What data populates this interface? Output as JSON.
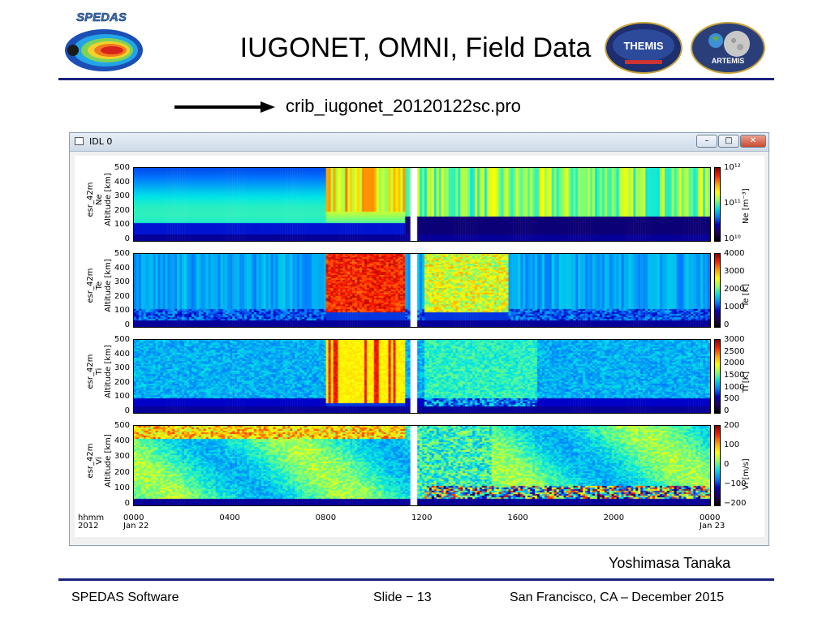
{
  "slide": {
    "title": "IUGONET, OMNI, Field Data",
    "filename": "crib_iugonet_20120122sc.pro",
    "author": "Yoshimasa Tanaka",
    "footer_left": "SPEDAS Software",
    "footer_mid": "Slide − 13",
    "footer_right": "San Francisco, CA – December 2015"
  },
  "logos": {
    "spedas": "SPEDAS",
    "themis": "THEMIS",
    "artemis": "ARTEMIS"
  },
  "window": {
    "title": "IDL 0",
    "minimize": "–",
    "maximize": "□",
    "close": "✕"
  },
  "colors": {
    "rule": "#1a237e",
    "accent_blue": "#1a237e"
  },
  "chart_data": {
    "type": "heatmap",
    "panels": [
      {
        "name": "Ne",
        "ylabel": [
          "esr_42m",
          "Ne",
          "Altitude [km]"
        ],
        "yticks": [
          "500",
          "400",
          "300",
          "200",
          "100",
          "0"
        ],
        "cbar_unit": "Ne [m⁻³]",
        "cbar_ticks": [
          "10¹²",
          "10¹¹",
          "10¹⁰"
        ],
        "ylim": [
          0,
          500
        ],
        "zlim": [
          10000000000.0,
          1000000000000.0
        ],
        "scale": "log"
      },
      {
        "name": "Te",
        "ylabel": [
          "esr_42m",
          "Te",
          "Altitude [km]"
        ],
        "yticks": [
          "500",
          "400",
          "300",
          "200",
          "100",
          "0"
        ],
        "cbar_unit": "Te [K]",
        "cbar_ticks": [
          "4000",
          "3000",
          "2000",
          "1000",
          "0"
        ],
        "ylim": [
          0,
          500
        ],
        "zlim": [
          0,
          4000
        ],
        "scale": "linear"
      },
      {
        "name": "Ti",
        "ylabel": [
          "esr_42m",
          "Ti",
          "Altitude [km]"
        ],
        "yticks": [
          "500",
          "400",
          "300",
          "200",
          "100",
          "0"
        ],
        "cbar_unit": "Ti [K]",
        "cbar_ticks": [
          "3000",
          "2500",
          "2000",
          "1500",
          "1000",
          "500",
          "0"
        ],
        "ylim": [
          0,
          500
        ],
        "zlim": [
          0,
          3000
        ],
        "scale": "linear"
      },
      {
        "name": "Vi",
        "ylabel": [
          "esr_42m",
          "Vi",
          "Altitude [km]"
        ],
        "yticks": [
          "500",
          "400",
          "300",
          "200",
          "100",
          "0"
        ],
        "cbar_unit": "Vi [m/s]",
        "cbar_ticks": [
          "200",
          "100",
          "0",
          "−100",
          "−200"
        ],
        "ylim": [
          0,
          500
        ],
        "zlim": [
          -200,
          200
        ],
        "scale": "linear"
      }
    ],
    "xaxis": {
      "label_top": "hhmm",
      "label_bottom": "2012",
      "ticks": [
        {
          "t": "0000",
          "d": "Jan 22"
        },
        {
          "t": "0400",
          "d": ""
        },
        {
          "t": "0800",
          "d": ""
        },
        {
          "t": "1200",
          "d": ""
        },
        {
          "t": "1600",
          "d": ""
        },
        {
          "t": "2000",
          "d": ""
        },
        {
          "t": "0000",
          "d": "Jan 23"
        }
      ]
    }
  }
}
